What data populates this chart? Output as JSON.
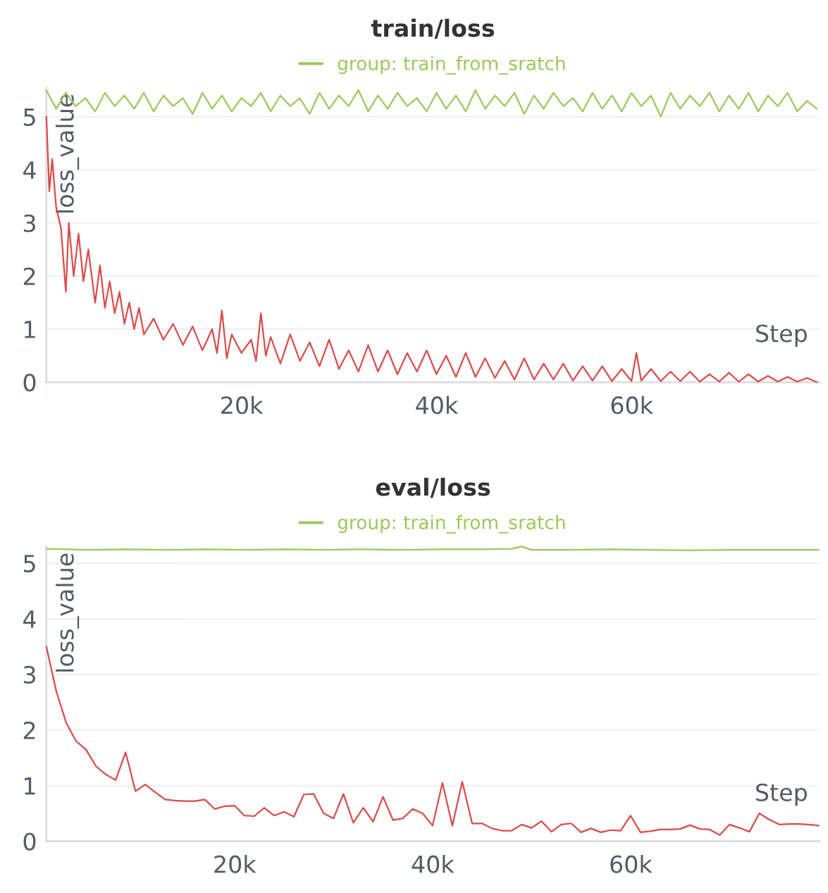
{
  "chart_data": [
    {
      "type": "line",
      "title": "train/loss",
      "xlabel": "Step",
      "ylabel": "loss_value",
      "xlim": [
        0,
        79300
      ],
      "ylim": [
        0,
        5.55
      ],
      "xticks": [
        {
          "value": 20000,
          "label": "20k"
        },
        {
          "value": 40000,
          "label": "40k"
        },
        {
          "value": 60000,
          "label": "60k"
        }
      ],
      "yticks": [
        0,
        1,
        2,
        3,
        4,
        5
      ],
      "grid": "y",
      "legend": "top",
      "line_style": "solid",
      "series": [
        {
          "name": "group: train_from_sratch",
          "color": "#9bc85a",
          "x": [
            0,
            1000,
            2000,
            3000,
            4000,
            5000,
            6000,
            7000,
            8000,
            9000,
            10000,
            11000,
            12000,
            13000,
            14000,
            15000,
            16000,
            17000,
            18000,
            19000,
            20000,
            21000,
            22000,
            23000,
            24000,
            25000,
            26000,
            27000,
            28000,
            29000,
            30000,
            31000,
            32000,
            33000,
            34000,
            35000,
            36000,
            37000,
            38000,
            39000,
            40000,
            41000,
            42000,
            43000,
            44000,
            45000,
            46000,
            47000,
            48000,
            49000,
            50000,
            51000,
            52000,
            53000,
            54000,
            55000,
            56000,
            57000,
            58000,
            59000,
            60000,
            61000,
            62000,
            63000,
            64000,
            65000,
            66000,
            67000,
            68000,
            69000,
            70000,
            71000,
            72000,
            73000,
            74000,
            75000,
            76000,
            77000,
            78000,
            79000
          ],
          "values": [
            5.5,
            5.15,
            5.45,
            5.2,
            5.35,
            5.1,
            5.45,
            5.2,
            5.4,
            5.15,
            5.45,
            5.1,
            5.4,
            5.2,
            5.35,
            5.05,
            5.45,
            5.15,
            5.4,
            5.1,
            5.35,
            5.2,
            5.45,
            5.1,
            5.4,
            5.2,
            5.35,
            5.05,
            5.45,
            5.15,
            5.4,
            5.2,
            5.5,
            5.1,
            5.4,
            5.15,
            5.45,
            5.2,
            5.35,
            5.1,
            5.45,
            5.15,
            5.4,
            5.1,
            5.5,
            5.15,
            5.4,
            5.2,
            5.45,
            5.05,
            5.4,
            5.15,
            5.45,
            5.2,
            5.35,
            5.1,
            5.45,
            5.15,
            5.4,
            5.1,
            5.45,
            5.2,
            5.4,
            5.0,
            5.45,
            5.15,
            5.4,
            5.2,
            5.45,
            5.1,
            5.4,
            5.15,
            5.45,
            5.1,
            5.4,
            5.2,
            5.45,
            5.1,
            5.3,
            5.15
          ]
        },
        {
          "color": "#dc4a4a",
          "x": [
            0,
            300,
            600,
            1000,
            1500,
            2000,
            2300,
            2800,
            3300,
            3800,
            4300,
            5000,
            5500,
            6000,
            6500,
            7000,
            7500,
            8000,
            8500,
            9000,
            9500,
            10000,
            11000,
            12000,
            13000,
            14000,
            15000,
            16000,
            17000,
            17500,
            18000,
            18500,
            19000,
            20000,
            21000,
            21500,
            22000,
            22500,
            23000,
            24000,
            25000,
            26000,
            27000,
            28000,
            29000,
            30000,
            31000,
            32000,
            33000,
            34000,
            35000,
            36000,
            37000,
            38000,
            39000,
            40000,
            41000,
            42000,
            43000,
            44000,
            45000,
            46000,
            47000,
            48000,
            49000,
            50000,
            51000,
            52000,
            53000,
            54000,
            55000,
            56000,
            57000,
            58000,
            59000,
            60000,
            60500,
            61000,
            62000,
            63000,
            64000,
            65000,
            66000,
            67000,
            68000,
            69000,
            70000,
            71000,
            72000,
            73000,
            74000,
            75000,
            76000,
            77000,
            78000,
            79000
          ],
          "values": [
            5.0,
            3.6,
            4.2,
            3.3,
            2.9,
            1.7,
            3.0,
            2.0,
            2.8,
            1.9,
            2.5,
            1.5,
            2.2,
            1.4,
            1.9,
            1.3,
            1.7,
            1.1,
            1.5,
            1.0,
            1.4,
            0.9,
            1.2,
            0.8,
            1.1,
            0.7,
            1.05,
            0.6,
            1.0,
            0.55,
            1.35,
            0.45,
            0.9,
            0.55,
            0.8,
            0.4,
            1.3,
            0.5,
            0.85,
            0.35,
            0.9,
            0.4,
            0.75,
            0.3,
            0.8,
            0.25,
            0.6,
            0.2,
            0.7,
            0.2,
            0.6,
            0.15,
            0.55,
            0.2,
            0.6,
            0.15,
            0.5,
            0.1,
            0.55,
            0.1,
            0.45,
            0.08,
            0.4,
            0.05,
            0.45,
            0.05,
            0.35,
            0.05,
            0.35,
            0.03,
            0.3,
            0.03,
            0.3,
            0.02,
            0.25,
            0.02,
            0.55,
            0.03,
            0.25,
            0.02,
            0.2,
            0.02,
            0.2,
            0.01,
            0.15,
            0.01,
            0.18,
            0.01,
            0.15,
            0.01,
            0.12,
            0.01,
            0.1,
            0.01,
            0.08,
            0.0
          ]
        }
      ]
    },
    {
      "type": "line",
      "title": "eval/loss",
      "xlabel": "Step",
      "ylabel": "loss_value",
      "xlim": [
        1000,
        79100
      ],
      "ylim": [
        0,
        5.3
      ],
      "xticks": [
        {
          "value": 20000,
          "label": "20k"
        },
        {
          "value": 40000,
          "label": "40k"
        },
        {
          "value": 60000,
          "label": "60k"
        }
      ],
      "yticks": [
        0,
        1,
        2,
        3,
        4,
        5
      ],
      "grid": "y",
      "legend": "top",
      "line_style": "solid",
      "series": [
        {
          "name": "group: train_from_sratch",
          "color": "#9bc85a",
          "x": [
            1000,
            5000,
            9000,
            13000,
            17000,
            21000,
            25000,
            29000,
            33000,
            37000,
            41000,
            45000,
            48000,
            49000,
            50000,
            54000,
            58000,
            62000,
            66000,
            70000,
            74000,
            79000
          ],
          "values": [
            5.26,
            5.24,
            5.25,
            5.24,
            5.25,
            5.24,
            5.25,
            5.24,
            5.25,
            5.24,
            5.25,
            5.25,
            5.26,
            5.3,
            5.24,
            5.24,
            5.25,
            5.24,
            5.23,
            5.24,
            5.24,
            5.24
          ]
        },
        {
          "color": "#dc4a4a",
          "x": [
            1000,
            2000,
            3000,
            4000,
            5000,
            6000,
            7000,
            8000,
            9000,
            10000,
            11000,
            12000,
            13000,
            14000,
            15000,
            16000,
            17000,
            18000,
            19000,
            20000,
            21000,
            22000,
            23000,
            24000,
            25000,
            26000,
            27000,
            28000,
            29000,
            30000,
            31000,
            32000,
            33000,
            34000,
            35000,
            36000,
            37000,
            38000,
            39000,
            40000,
            41000,
            42000,
            43000,
            44000,
            45000,
            46000,
            47000,
            48000,
            49000,
            50000,
            51000,
            52000,
            53000,
            54000,
            55000,
            56000,
            57000,
            58000,
            59000,
            60000,
            61000,
            62000,
            63000,
            64000,
            65000,
            66000,
            67000,
            68000,
            69000,
            70000,
            71000,
            72000,
            73000,
            74000,
            75000,
            76000,
            77000,
            78000,
            79000
          ],
          "values": [
            3.5,
            2.7,
            2.13,
            1.8,
            1.65,
            1.35,
            1.2,
            1.1,
            1.6,
            0.9,
            1.02,
            0.88,
            0.75,
            0.73,
            0.72,
            0.72,
            0.75,
            0.58,
            0.63,
            0.64,
            0.46,
            0.45,
            0.6,
            0.46,
            0.53,
            0.44,
            0.84,
            0.85,
            0.5,
            0.41,
            0.85,
            0.33,
            0.6,
            0.35,
            0.8,
            0.38,
            0.41,
            0.58,
            0.5,
            0.28,
            1.05,
            0.28,
            1.07,
            0.32,
            0.32,
            0.23,
            0.19,
            0.19,
            0.3,
            0.24,
            0.36,
            0.17,
            0.3,
            0.32,
            0.16,
            0.23,
            0.16,
            0.2,
            0.19,
            0.46,
            0.16,
            0.18,
            0.21,
            0.21,
            0.22,
            0.29,
            0.22,
            0.21,
            0.11,
            0.3,
            0.24,
            0.17,
            0.5,
            0.39,
            0.3,
            0.31,
            0.31,
            0.3,
            0.28
          ]
        }
      ]
    }
  ]
}
